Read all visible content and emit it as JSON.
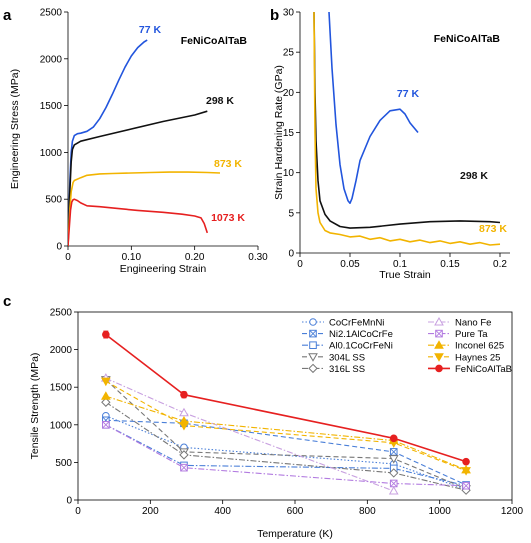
{
  "chart_data": [
    {
      "panel": "a",
      "type": "line",
      "title": "FeNiCoAlTaB",
      "xlabel": "Engineering Strain",
      "ylabel": "Engineering Stress (MPa)",
      "xlim": [
        0,
        0.3
      ],
      "ylim": [
        0,
        2500
      ],
      "xticks": [
        "0",
        "0.10",
        "0.20",
        "0.30"
      ],
      "xtick_values": [
        0,
        0.1,
        0.2,
        0.3
      ],
      "yticks": [
        "0",
        "500",
        "1000",
        "1500",
        "2000",
        "2500"
      ],
      "ytick_values": [
        0,
        500,
        1000,
        1500,
        2000,
        2500
      ],
      "grid": false,
      "series": [
        {
          "name": "77 K",
          "color": "#2255dd",
          "x": [
            0,
            0.003,
            0.005,
            0.007,
            0.01,
            0.015,
            0.02,
            0.03,
            0.04,
            0.05,
            0.06,
            0.07,
            0.08,
            0.09,
            0.1,
            0.11,
            0.12,
            0.125
          ],
          "y": [
            0,
            700,
            1000,
            1120,
            1180,
            1200,
            1205,
            1225,
            1270,
            1360,
            1480,
            1620,
            1770,
            1910,
            2030,
            2120,
            2180,
            2200
          ]
        },
        {
          "name": "298 K",
          "color": "#111111",
          "x": [
            0,
            0.003,
            0.005,
            0.007,
            0.01,
            0.02,
            0.05,
            0.1,
            0.15,
            0.2,
            0.22
          ],
          "y": [
            0,
            600,
            900,
            1030,
            1080,
            1120,
            1170,
            1250,
            1330,
            1400,
            1440
          ]
        },
        {
          "name": "873 K",
          "color": "#f2b400",
          "x": [
            0,
            0.003,
            0.005,
            0.008,
            0.01,
            0.02,
            0.03,
            0.05,
            0.07,
            0.1,
            0.13,
            0.16,
            0.19,
            0.22,
            0.24
          ],
          "y": [
            0,
            400,
            580,
            680,
            700,
            730,
            755,
            770,
            775,
            780,
            785,
            790,
            790,
            785,
            780
          ]
        },
        {
          "name": "1073 K",
          "color": "#e62020",
          "x": [
            0,
            0.002,
            0.004,
            0.006,
            0.008,
            0.01,
            0.015,
            0.02,
            0.03,
            0.05,
            0.08,
            0.11,
            0.15,
            0.18,
            0.2,
            0.21,
            0.215,
            0.22
          ],
          "y": [
            0,
            200,
            380,
            470,
            495,
            500,
            485,
            460,
            430,
            420,
            400,
            380,
            360,
            340,
            320,
            300,
            240,
            140
          ]
        }
      ]
    },
    {
      "panel": "b",
      "type": "line",
      "title": "FeNiCoAlTaB",
      "xlabel": "True Strain",
      "ylabel": "Strain Hardening Rate (GPa)",
      "xlim": [
        0,
        0.21
      ],
      "ylim": [
        0,
        30
      ],
      "xticks": [
        "0",
        "0.05",
        "0.1",
        "0.15",
        "0.2"
      ],
      "xtick_values": [
        0,
        0.05,
        0.1,
        0.15,
        0.2
      ],
      "yticks": [
        "0",
        "5",
        "10",
        "15",
        "20",
        "25",
        "30"
      ],
      "ytick_values": [
        0,
        5,
        10,
        15,
        20,
        25,
        30
      ],
      "grid": false,
      "series": [
        {
          "name": "77 K",
          "color": "#2255dd",
          "x": [
            0.029,
            0.032,
            0.036,
            0.04,
            0.044,
            0.048,
            0.05,
            0.052,
            0.056,
            0.06,
            0.07,
            0.08,
            0.09,
            0.1,
            0.105,
            0.11,
            0.118
          ],
          "y": [
            30,
            23,
            16,
            11,
            8,
            6.5,
            6.2,
            6.8,
            9,
            11.5,
            14.5,
            16.5,
            17.7,
            17.9,
            17.3,
            16.2,
            15
          ]
        },
        {
          "name": "298 K",
          "color": "#111111",
          "x": [
            0.014,
            0.015,
            0.016,
            0.018,
            0.02,
            0.025,
            0.03,
            0.04,
            0.05,
            0.07,
            0.1,
            0.13,
            0.16,
            0.19,
            0.2
          ],
          "y": [
            30,
            20,
            14,
            9,
            6.5,
            4.8,
            4,
            3.3,
            3.1,
            3.2,
            3.6,
            3.9,
            4,
            3.9,
            3.8
          ]
        },
        {
          "name": "873 K",
          "color": "#f2b400",
          "x": [
            0.014,
            0.015,
            0.016,
            0.018,
            0.02,
            0.025,
            0.03,
            0.04,
            0.05,
            0.06,
            0.07,
            0.08,
            0.09,
            0.1,
            0.11,
            0.12,
            0.13,
            0.14,
            0.15,
            0.16,
            0.17,
            0.18,
            0.19,
            0.2
          ],
          "y": [
            30,
            15,
            8,
            5,
            3.8,
            2.8,
            2.5,
            2.3,
            2,
            2.1,
            1.7,
            1.9,
            1.5,
            1.7,
            1.4,
            1.6,
            1.3,
            1.5,
            1.2,
            1.4,
            1.1,
            1.3,
            1,
            1.1
          ]
        }
      ]
    },
    {
      "panel": "c",
      "type": "line",
      "title": "",
      "xlabel": "Temperature (K)",
      "ylabel": "Tensile Strength (MPa)",
      "xlim": [
        0,
        1200
      ],
      "ylim": [
        0,
        2500
      ],
      "xticks": [
        "0",
        "200",
        "400",
        "600",
        "800",
        "1000",
        "1200"
      ],
      "xtick_values": [
        0,
        200,
        400,
        600,
        800,
        1000,
        1200
      ],
      "yticks": [
        "0",
        "500",
        "1000",
        "1500",
        "2000",
        "2500"
      ],
      "ytick_values": [
        0,
        500,
        1000,
        1500,
        2000,
        2500
      ],
      "grid": false,
      "legend_position": "top-right",
      "series": [
        {
          "name": "CoCrFeMnNi",
          "color": "#4a7fd8",
          "dash": "dotted",
          "marker": "circle",
          "x": [
            77,
            293,
            873,
            1073
          ],
          "y": [
            1120,
            700,
            480,
            140
          ]
        },
        {
          "name": "Ni2.1AlCoCrFe",
          "color": "#4a7fd8",
          "dash": "dashed",
          "marker": "xbox",
          "x": [
            77,
            293,
            873,
            1073
          ],
          "y": [
            1060,
            1020,
            640,
            200
          ]
        },
        {
          "name": "Al0.1CoCrFeNi",
          "color": "#4a7fd8",
          "dash": "dashdot",
          "marker": "square",
          "x": [
            77,
            293,
            873,
            1073
          ],
          "y": [
            1000,
            460,
            420,
            190
          ]
        },
        {
          "name": "304L SS",
          "color": "#777777",
          "dash": "dashed",
          "marker": "tri-down",
          "x": [
            77,
            293,
            873,
            1073
          ],
          "y": [
            1600,
            640,
            550,
            150
          ]
        },
        {
          "name": "316L SS",
          "color": "#777777",
          "dash": "dashdot",
          "marker": "diamond",
          "x": [
            77,
            293,
            873,
            1073
          ],
          "y": [
            1300,
            600,
            360,
            130
          ]
        },
        {
          "name": "Nano Fe",
          "color": "#c8a0e0",
          "dash": "dashdot",
          "marker": "tri-up",
          "x": [
            77,
            293,
            873
          ],
          "y": [
            1620,
            1160,
            120
          ]
        },
        {
          "name": "Pure Ta",
          "color": "#b27be0",
          "dash": "dashdot",
          "marker": "xbox",
          "x": [
            77,
            293,
            873,
            1073
          ],
          "y": [
            1000,
            430,
            220,
            190
          ]
        },
        {
          "name": "Inconel 625",
          "color": "#f2b400",
          "dash": "dashdot",
          "marker": "tri-up-filled",
          "x": [
            77,
            293,
            873,
            1073
          ],
          "y": [
            1380,
            1050,
            790,
            400
          ]
        },
        {
          "name": "Haynes 25",
          "color": "#f2b400",
          "dash": "dashed",
          "marker": "tri-down-filled",
          "x": [
            77,
            293,
            873,
            1073
          ],
          "y": [
            1580,
            990,
            760,
            390
          ]
        },
        {
          "name": "FeNiCoAlTaB",
          "color": "#e62020",
          "dash": "solid",
          "marker": "circle-filled",
          "x": [
            77,
            293,
            873,
            1073
          ],
          "y": [
            2200,
            1400,
            820,
            510
          ],
          "err": [
            45,
            40,
            30,
            25
          ]
        }
      ]
    }
  ],
  "panel_labels": {
    "a": "a",
    "b": "b",
    "c": "c"
  }
}
